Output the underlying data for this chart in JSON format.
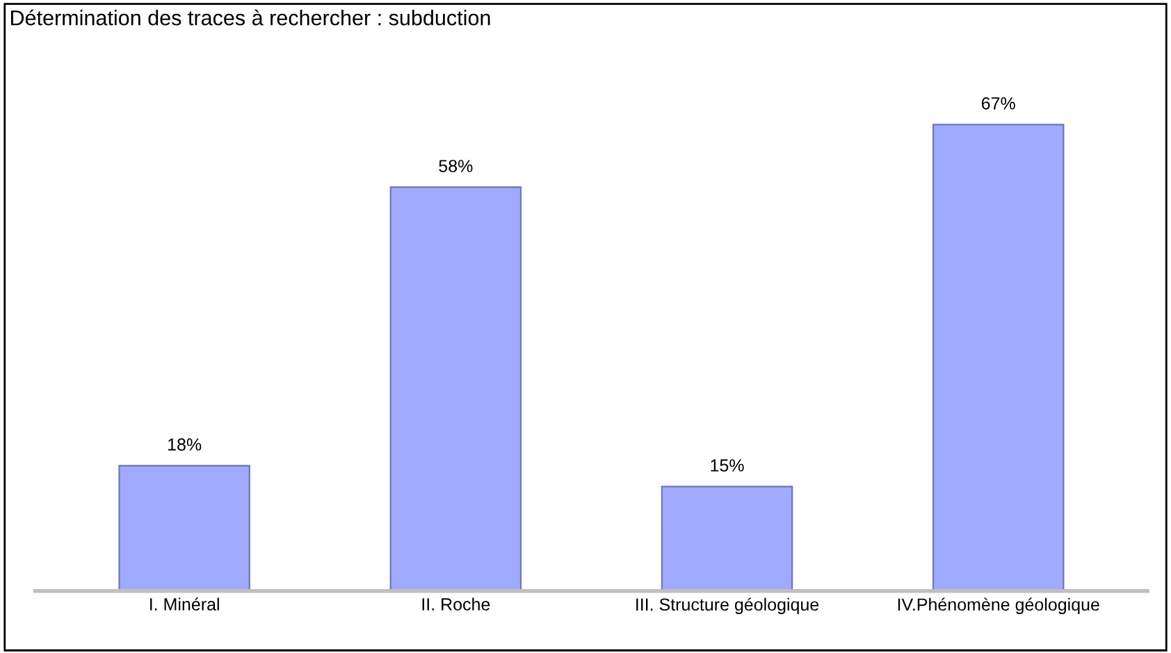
{
  "chart_data": {
    "type": "bar",
    "title": "Détermination des traces à rechercher : subduction",
    "categories": [
      "I. Minéral",
      "II. Roche",
      "III. Structure géologique",
      "IV.Phénomène géologique"
    ],
    "values": [
      18,
      58,
      15,
      67
    ],
    "color": "#a0aaff",
    "value_labels": [
      "18%",
      "58%",
      "15%",
      "67%"
    ],
    "grid": false,
    "legend": false
  }
}
